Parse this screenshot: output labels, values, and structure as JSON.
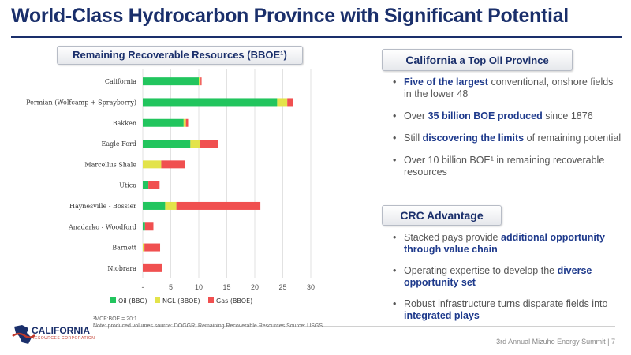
{
  "title": "World-Class Hydrocarbon Province with Significant Potential",
  "chart_header": "Remaining Recoverable Resources (BBOE¹)",
  "california_header": {
    "main": "California",
    "rest": " a Top Oil Province"
  },
  "california_bullets": [
    [
      {
        "t": "Five of the largest",
        "hl": true
      },
      {
        "t": " conventional, onshore fields in the lower 48",
        "hl": false
      }
    ],
    [
      {
        "t": "Over ",
        "hl": false
      },
      {
        "t": "35 billion BOE produced",
        "hl": true
      },
      {
        "t": " since 1876",
        "hl": false
      }
    ],
    [
      {
        "t": "Still ",
        "hl": false
      },
      {
        "t": "discovering the limits",
        "hl": true
      },
      {
        "t": " of remaining potential",
        "hl": false
      }
    ],
    [
      {
        "t": "Over 10 billion BOE¹ in remaining recoverable resources",
        "hl": false
      }
    ]
  ],
  "crc_header": "CRC Advantage",
  "crc_bullets": [
    [
      {
        "t": "Stacked pays provide ",
        "hl": false
      },
      {
        "t": "additional opportunity through value chain",
        "hl": true
      }
    ],
    [
      {
        "t": "Operating expertise to develop the ",
        "hl": false
      },
      {
        "t": "diverse opportunity set",
        "hl": true
      }
    ],
    [
      {
        "t": "Robust infrastructure turns disparate fields into ",
        "hl": false
      },
      {
        "t": "integrated plays",
        "hl": true
      }
    ]
  ],
  "footnote_1": "¹MCF:BOE = 20:1",
  "footnote_2": "Note: produced volumes source: DOGGR; Remaining Recoverable Resources Source: USGS",
  "logo": {
    "name": "CALIFORNIA",
    "sub": "RESOURCES CORPORATION"
  },
  "footer": "3rd Annual Mizuho Energy Summit | 7",
  "colors": {
    "oil": "#22c55e",
    "ngl": "#e3e34a",
    "gas": "#f05050",
    "navy": "#1a2f6b"
  },
  "chart_data": {
    "type": "bar",
    "orientation": "horizontal",
    "stacked": true,
    "categories": [
      "California",
      "Permian (Wolfcamp + Sprayberry)",
      "Bakken",
      "Eagle Ford",
      "Marcellus Shale",
      "Utica",
      "Haynesville - Bossier",
      "Anadarko - Woodford",
      "Barnett",
      "Niobrara"
    ],
    "series": [
      {
        "name": "Oil (BBO)",
        "color": "#22c55e",
        "values": [
          10.0,
          24.0,
          7.3,
          8.5,
          0.0,
          1.0,
          4.0,
          0.4,
          0.0,
          0.0
        ]
      },
      {
        "name": "NGL (BBOE)",
        "color": "#e3e34a",
        "values": [
          0.3,
          1.8,
          0.4,
          1.7,
          3.3,
          0.0,
          2.0,
          0.0,
          0.3,
          0.0
        ]
      },
      {
        "name": "Gas (BBOE)",
        "color": "#f05050",
        "values": [
          0.2,
          1.0,
          0.4,
          3.3,
          4.2,
          2.0,
          15.0,
          1.5,
          2.8,
          3.4
        ]
      }
    ],
    "xticks": [
      "-",
      "5",
      "10",
      "15",
      "20",
      "25",
      "30"
    ],
    "xlim": [
      0,
      30
    ],
    "grid": true,
    "legend_position": "bottom"
  }
}
